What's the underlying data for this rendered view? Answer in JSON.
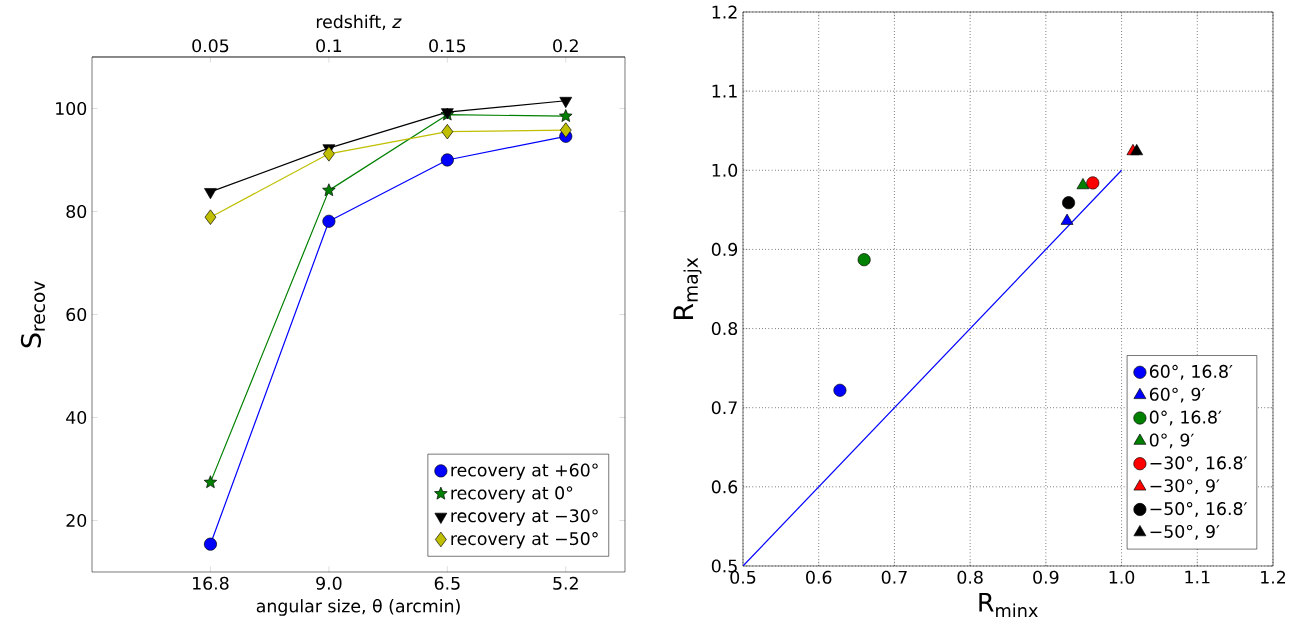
{
  "chart_data": [
    {
      "type": "line",
      "categories": [
        "16.8",
        "9.0",
        "6.5",
        "5.2"
      ],
      "xlabel": "angular size, θ (arcmin)",
      "ylabel": "S$_{recov}$",
      "x2label": "redshift, *z*",
      "x2lim": [
        0,
        0.225
      ],
      "x2ticks": [
        0.05,
        0.1,
        0.15,
        0.2
      ],
      "ylim": [
        10,
        110
      ],
      "yticks": [
        20,
        40,
        60,
        80,
        100
      ],
      "legend": "bottom right",
      "series": [
        {
          "name": "recovery at +60°",
          "color": "#0000ff",
          "marker": "circle",
          "values": [
            15.4,
            78.1,
            90.0,
            94.6
          ]
        },
        {
          "name": "recovery at 0°",
          "color": "#008000",
          "marker": "star",
          "values": [
            27.4,
            84.1,
            98.8,
            98.5
          ]
        },
        {
          "name": "recovery at −30°",
          "color": "#000000",
          "marker": "triangle_down",
          "values": [
            83.8,
            92.3,
            99.3,
            101.5
          ]
        },
        {
          "name": "recovery at −50°",
          "color": "#bfbf00",
          "marker": "diamond",
          "values": [
            78.9,
            91.2,
            95.5,
            95.8
          ]
        }
      ]
    },
    {
      "type": "scatter",
      "xlabel": "R$_{minx}$",
      "ylabel": "R$_{majx}$",
      "xlim": [
        0.5,
        1.2
      ],
      "ylim": [
        0.5,
        1.2
      ],
      "xticks": [
        0.5,
        0.6,
        0.7,
        0.8,
        0.9,
        {
          "value": 1.0,
          "label": "1.0"
        },
        1.1,
        1.2
      ],
      "yticks": [
        0.5,
        0.6,
        0.7,
        0.8,
        0.9,
        {
          "value": 1.0,
          "label": "1.0"
        },
        1.1,
        1.2
      ],
      "grid": true,
      "legend": "bottom right",
      "series": [
        {
          "type": "line",
          "color": "#0000ff",
          "marker": "none",
          "x": [
            0.5,
            1.0
          ],
          "values": [
            0.5,
            1.0
          ]
        },
        {
          "name": "60°, 16.8′",
          "color": "#0000ff",
          "marker": "circle",
          "x": [
            0.628
          ],
          "values": [
            0.722
          ]
        },
        {
          "name": "60°, 9′",
          "color": "#0000ff",
          "marker": "triangle",
          "x": [
            0.928
          ],
          "values": [
            0.936
          ]
        },
        {
          "name": "0°, 16.8′",
          "color": "#008000",
          "marker": "circle",
          "x": [
            0.66
          ],
          "values": [
            0.887
          ]
        },
        {
          "name": "0°, 9′",
          "color": "#008000",
          "marker": "triangle",
          "x": [
            0.949
          ],
          "values": [
            0.981
          ]
        },
        {
          "name": "−30°, 16.8′",
          "color": "#ff0000",
          "marker": "circle",
          "x": [
            0.962
          ],
          "values": [
            0.984
          ]
        },
        {
          "name": "−30°, 9′",
          "color": "#ff0000",
          "marker": "triangle",
          "x": [
            1.015
          ],
          "values": [
            1.024
          ]
        },
        {
          "name": "−50°, 16.8′",
          "color": "#000000",
          "marker": "circle",
          "x": [
            0.93
          ],
          "values": [
            0.959
          ]
        },
        {
          "name": "−50°, 9′",
          "color": "#000000",
          "marker": "triangle",
          "x": [
            1.02
          ],
          "values": [
            1.024
          ]
        }
      ]
    }
  ]
}
